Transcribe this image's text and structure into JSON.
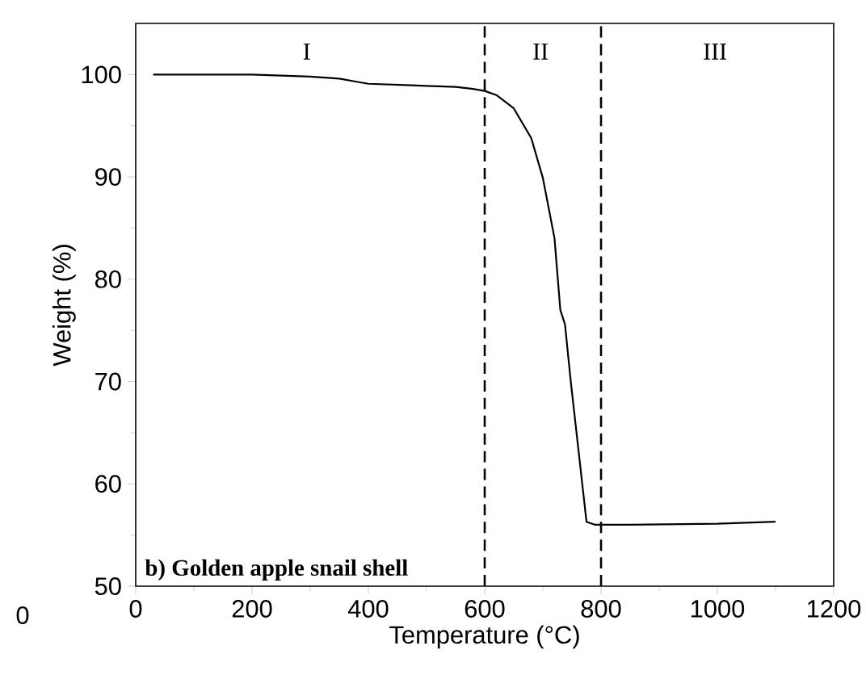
{
  "chart_data": {
    "type": "line",
    "xlabel": "Temperature (°C)",
    "ylabel": "Weight (%)",
    "xlim": [
      0,
      1200
    ],
    "xticks": [
      0,
      200,
      400,
      600,
      800,
      1000,
      1200
    ],
    "ylim": [
      50,
      105
    ],
    "yticks": [
      50,
      60,
      70,
      80,
      90,
      100
    ],
    "series": [
      {
        "color": "#000000",
        "x": [
          30,
          100,
          200,
          300,
          350,
          380,
          400,
          500,
          550,
          580,
          600,
          620,
          650,
          680,
          700,
          720,
          730,
          738,
          748,
          775,
          790,
          850,
          1000,
          1100
        ],
        "values": [
          100,
          100,
          100,
          99.8,
          99.6,
          99.3,
          99.1,
          98.9,
          98.8,
          98.6,
          98.4,
          98.0,
          96.7,
          93.8,
          89.9,
          84.0,
          77.0,
          75.6,
          70.0,
          56.3,
          56.0,
          56.0,
          56.1,
          56.3
        ]
      }
    ],
    "ref_lines": [
      {
        "axis": "x",
        "value": 600,
        "color": "#000000",
        "line_style": "dashed"
      },
      {
        "axis": "x",
        "value": 800,
        "color": "#000000",
        "line_style": "dashed"
      }
    ],
    "annotations": [
      "I",
      "II",
      "III",
      "b) Golden apple snail shell",
      "0"
    ],
    "grid": false,
    "marker": "none",
    "line_style": "solid"
  }
}
